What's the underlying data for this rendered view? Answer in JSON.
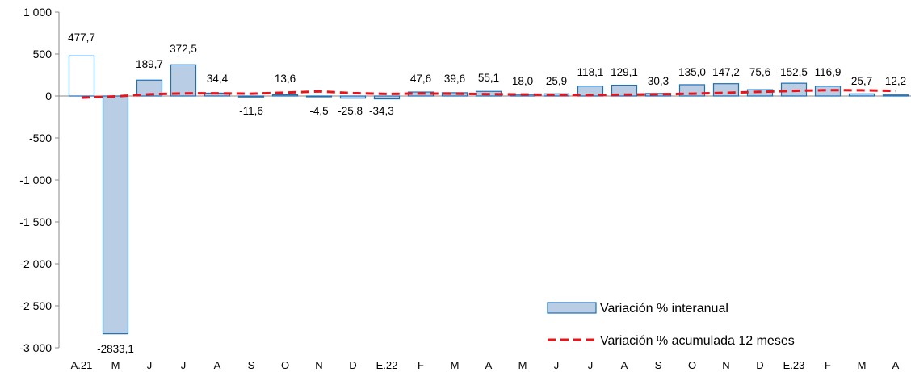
{
  "chart_data": {
    "type": "bar",
    "categories": [
      "A.21",
      "M",
      "J",
      "J",
      "A",
      "S",
      "O",
      "N",
      "D",
      "E.22",
      "F",
      "M",
      "A",
      "M",
      "J",
      "J",
      "A",
      "S",
      "O",
      "N",
      "D",
      "E.23",
      "F",
      "M",
      "A"
    ],
    "ylim": [
      -3000,
      1000
    ],
    "yticks": [
      1000,
      500,
      0,
      -500,
      -1000,
      -1500,
      -2000,
      -2500,
      -3000
    ],
    "ytick_labels": [
      "1 000",
      "500",
      "0",
      "-500",
      "-1 000",
      "-1 500",
      "-2 000",
      "-2 500",
      "-3 000"
    ],
    "series": [
      {
        "name": "Variación % interanual",
        "type": "bar",
        "values": [
          477.7,
          -2833.1,
          189.7,
          372.5,
          34.4,
          -11.6,
          13.6,
          -4.5,
          -25.8,
          -34.3,
          47.6,
          39.6,
          55.1,
          18.0,
          25.9,
          118.1,
          129.1,
          30.3,
          135.0,
          147.2,
          75.6,
          152.5,
          116.9,
          25.7,
          12.2
        ],
        "labels": [
          "477,7",
          "-2833,1",
          "189,7",
          "372,5",
          "34,4",
          "-11,6",
          "13,6",
          "-4,5",
          "-25,8",
          "-34,3",
          "47,6",
          "39,6",
          "55,1",
          "18,0",
          "25,9",
          "118,1",
          "129,1",
          "30,3",
          "135,0",
          "147,2",
          "75,6",
          "152,5",
          "116,9",
          "25,7",
          "12,2"
        ],
        "fill": "#b9cde5",
        "first_fill": "#ffffff",
        "stroke": "#1f6fb4"
      },
      {
        "name": "Variación % acumulada 12 meses",
        "type": "line",
        "style": "dashed",
        "color": "#e8141b",
        "values": [
          -20,
          -5,
          20,
          32,
          33,
          28,
          40,
          55,
          35,
          25,
          30,
          28,
          22,
          18,
          14,
          12,
          16,
          20,
          28,
          38,
          50,
          62,
          70,
          68,
          62
        ]
      }
    ],
    "legend": {
      "placement": "bottom-right",
      "items": [
        "Variación % interanual",
        "Variación % acumulada 12 meses"
      ]
    },
    "grid": false
  }
}
